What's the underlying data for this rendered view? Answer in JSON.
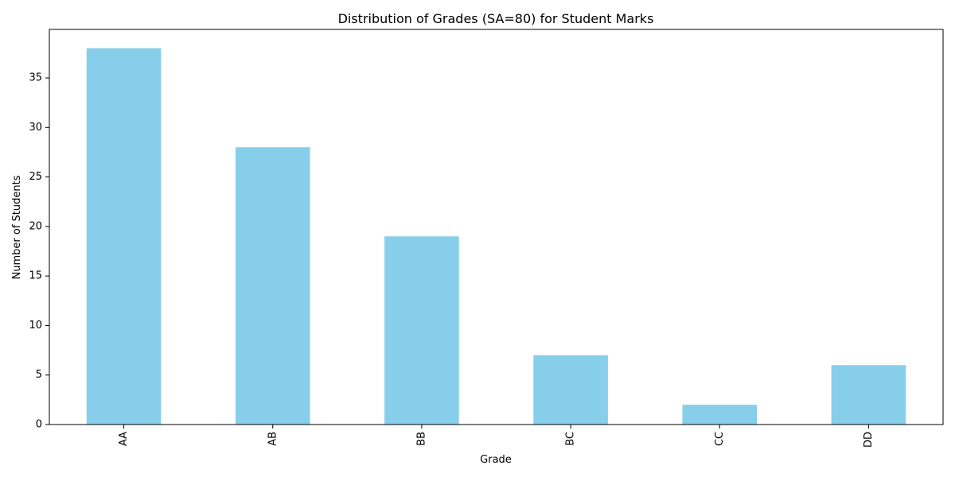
{
  "chart_data": {
    "type": "bar",
    "title": "Distribution of Grades (SA=80) for Student Marks",
    "xlabel": "Grade",
    "ylabel": "Number of Students",
    "categories": [
      "AA",
      "AB",
      "BB",
      "BC",
      "CC",
      "DD"
    ],
    "values": [
      38,
      28,
      19,
      7,
      2,
      6
    ],
    "ylim": [
      0,
      39.9
    ],
    "yticks": [
      0,
      5,
      10,
      15,
      20,
      25,
      30,
      35
    ],
    "bar_color": "#87CEEB",
    "grid": false,
    "legend": "none"
  }
}
